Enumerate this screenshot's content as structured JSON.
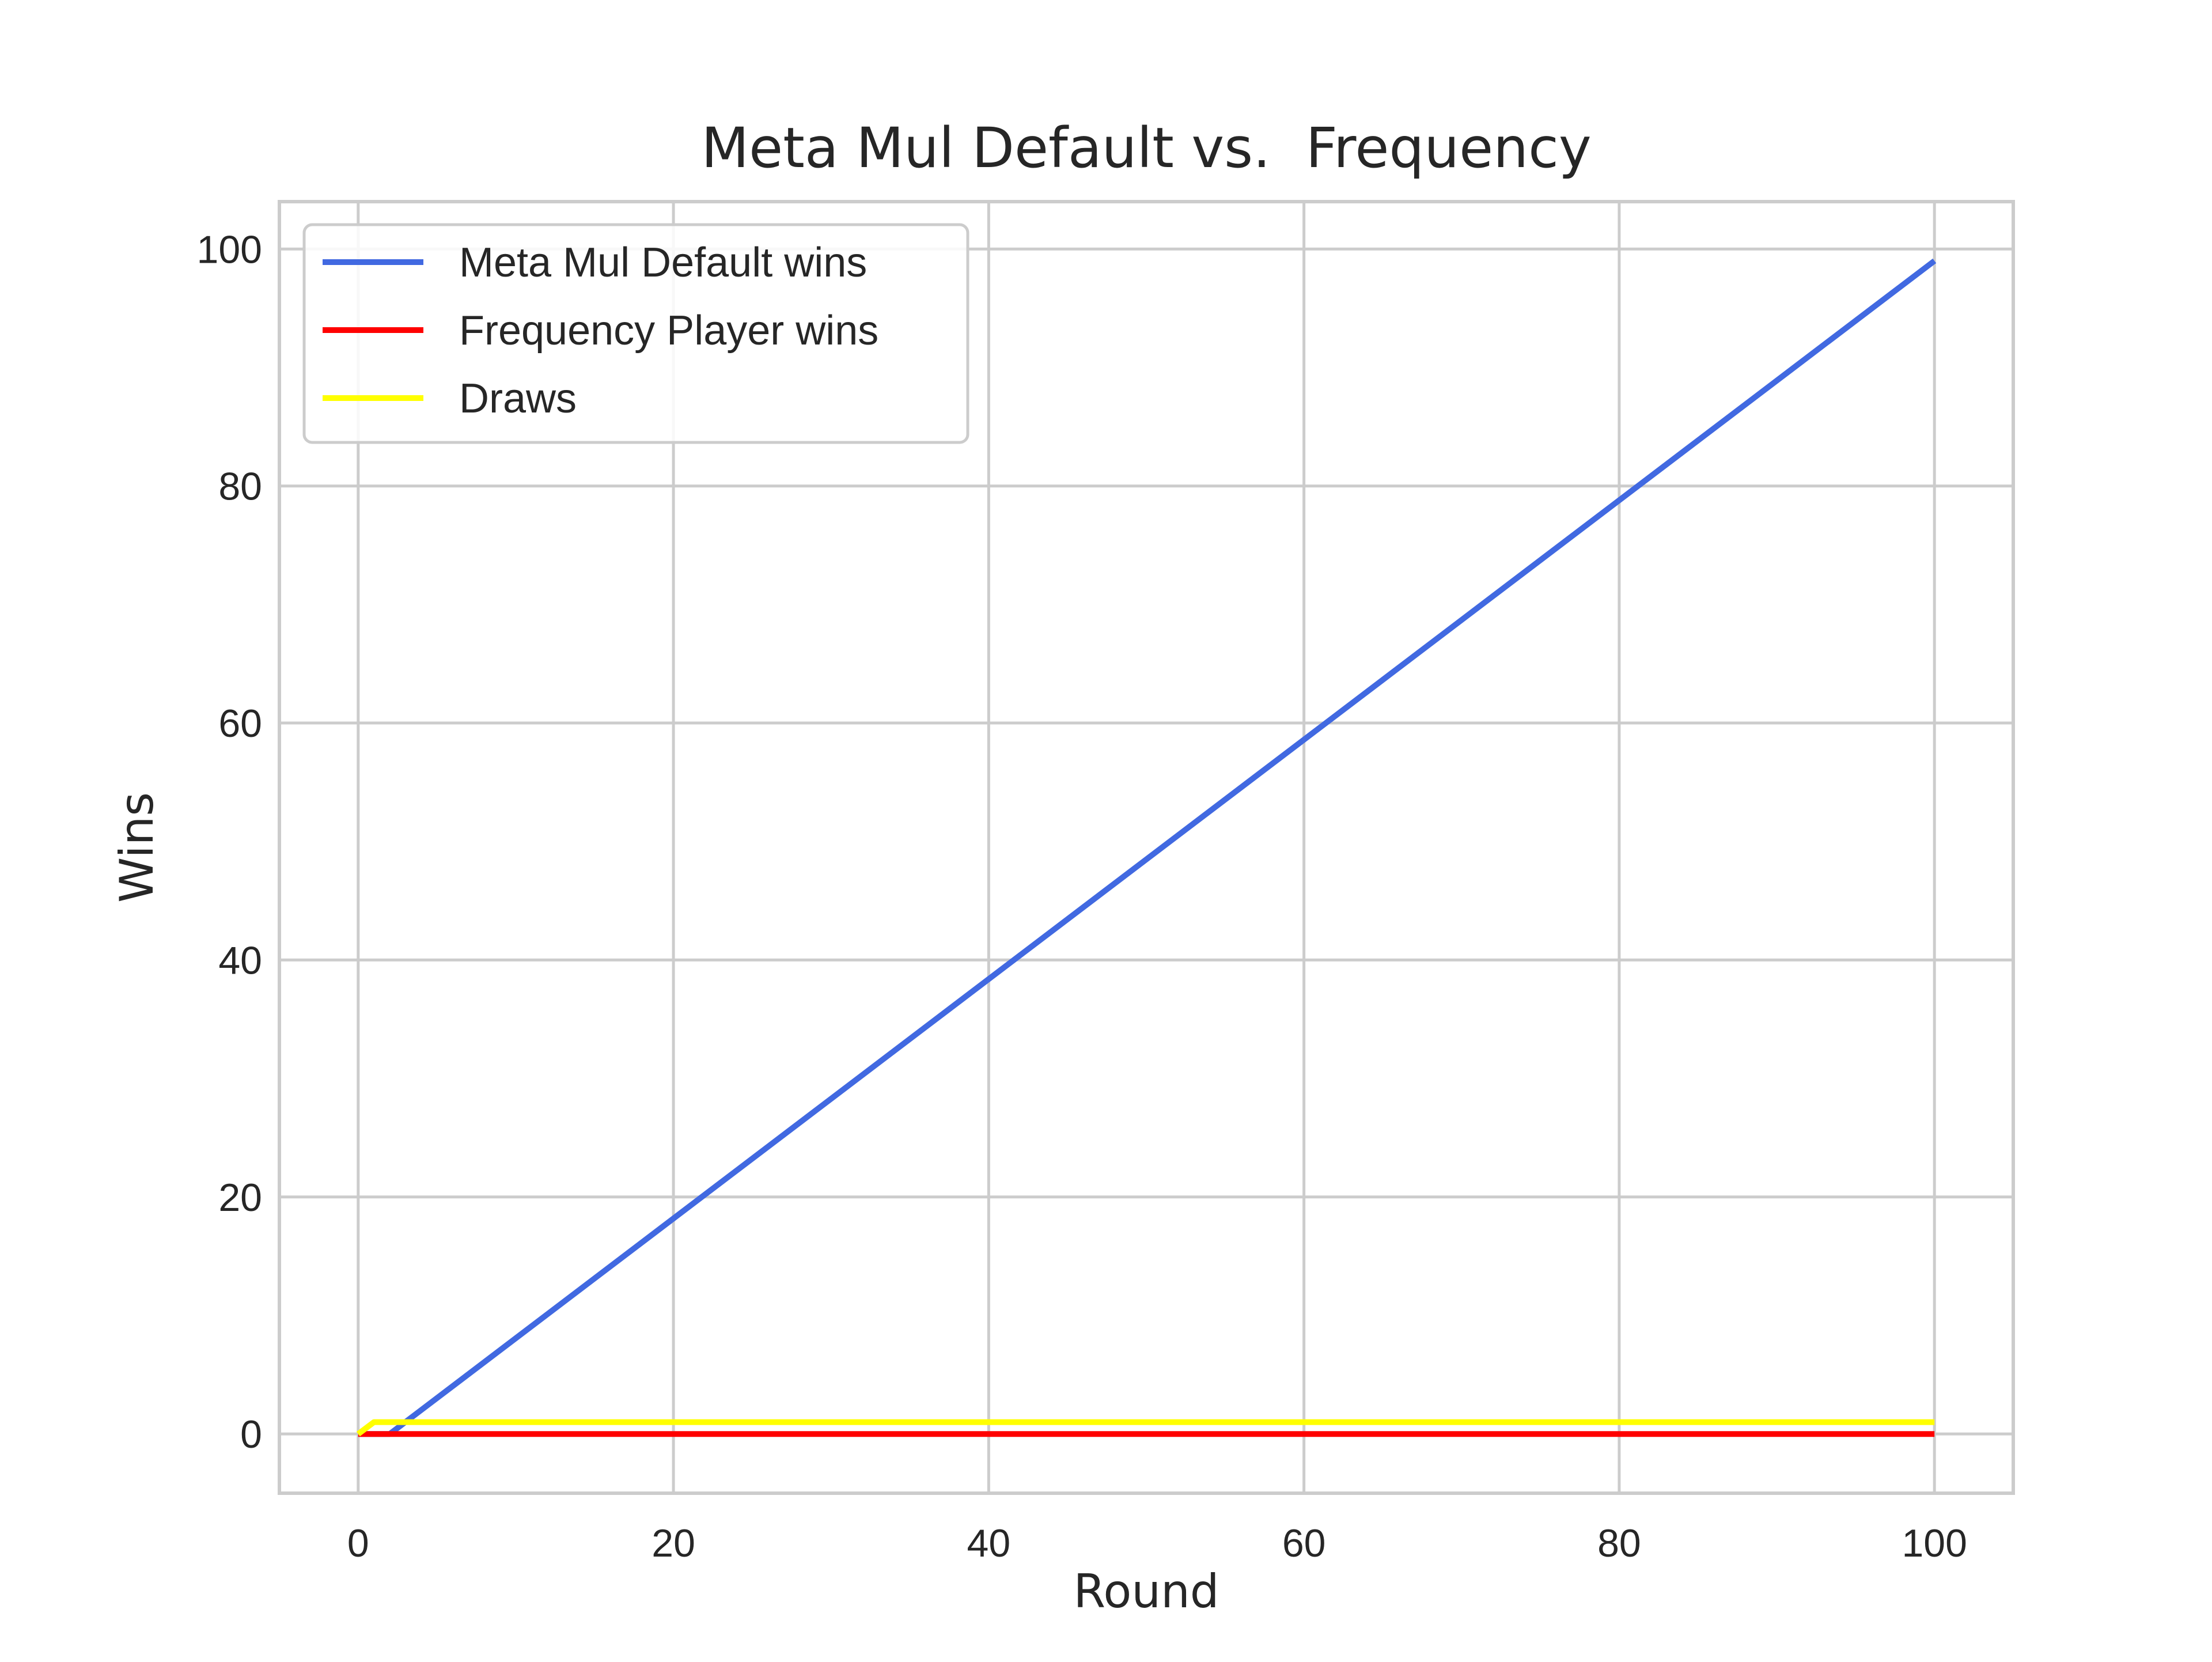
{
  "chart_data": {
    "type": "line",
    "title": "Meta Mul Default vs.  Frequency",
    "xlabel": "Round",
    "ylabel": "Wins",
    "xlim": [
      -5,
      105
    ],
    "ylim": [
      -5,
      104
    ],
    "xticks": [
      0,
      20,
      40,
      60,
      80,
      100
    ],
    "yticks": [
      0,
      20,
      40,
      60,
      80,
      100
    ],
    "xtick_labels": [
      "0",
      "20",
      "40",
      "60",
      "80",
      "100"
    ],
    "ytick_labels": [
      "0",
      "20",
      "40",
      "60",
      "80",
      "100"
    ],
    "grid": true,
    "legend_position": "top-left",
    "series": [
      {
        "name": "Meta Mul Default wins",
        "color": "#4169e1",
        "points": [
          [
            0,
            0
          ],
          [
            1,
            0
          ],
          [
            2,
            0
          ],
          [
            100,
            99
          ]
        ]
      },
      {
        "name": "Frequency Player wins",
        "color": "#ff0000",
        "points": [
          [
            0,
            0
          ],
          [
            100,
            0
          ]
        ]
      },
      {
        "name": "Draws",
        "color": "#ffff00",
        "points": [
          [
            0,
            0
          ],
          [
            1,
            1
          ],
          [
            100,
            1
          ]
        ]
      }
    ]
  }
}
